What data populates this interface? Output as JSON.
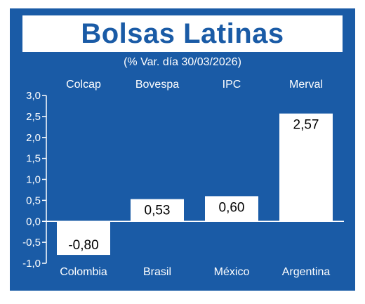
{
  "colors": {
    "background": "#1a5ba6",
    "bar": "#ffffff",
    "text": "#ffffff",
    "label_text": "#000000"
  },
  "title": "Bolsas Latinas",
  "subtitle": "(% Var. día 30/03/2026)",
  "chart_data": {
    "type": "bar",
    "title": "Bolsas Latinas",
    "subtitle": "(% Var. día 30/03/2026)",
    "index_names": [
      "Colcap",
      "Bovespa",
      "IPC",
      "Merval"
    ],
    "categories": [
      "Colombia",
      "Brasil",
      "México",
      "Argentina"
    ],
    "values": [
      -0.8,
      0.53,
      0.6,
      2.57
    ],
    "value_labels": [
      "-0,80",
      "0,53",
      "0,60",
      "2,57"
    ],
    "yticks": [
      3.0,
      2.5,
      2.0,
      1.5,
      1.0,
      0.5,
      0.0,
      -0.5,
      -1.0
    ],
    "ytick_labels": [
      "3,0",
      "2,5",
      "2,0",
      "1,5",
      "1,0",
      "0,5",
      "0,0",
      "-0,5",
      "-1,0"
    ],
    "ylim": [
      -1.0,
      3.0
    ],
    "grid": false
  }
}
